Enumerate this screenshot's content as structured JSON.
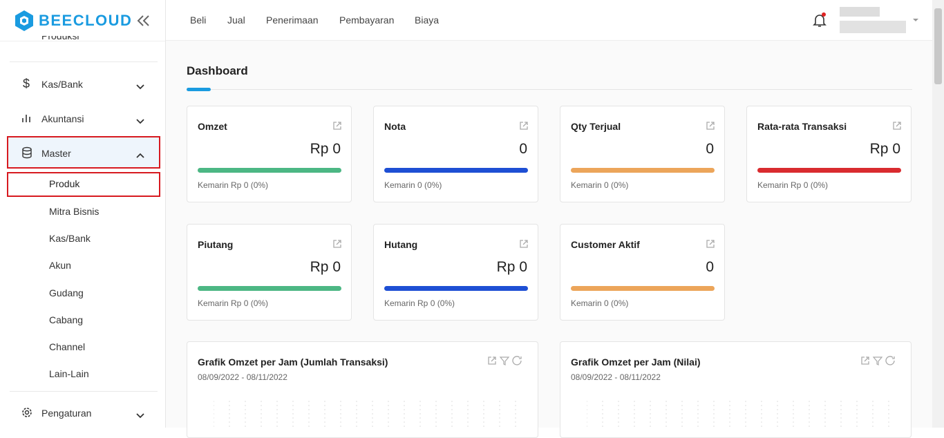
{
  "brand": "BEECLOUD",
  "sidebar": {
    "items_top": [
      "Produksi",
      "Kas/Bank",
      "Akuntansi"
    ],
    "master": "Master",
    "submenu": [
      "Produk",
      "Mitra Bisnis",
      "Kas/Bank",
      "Akun",
      "Gudang",
      "Cabang",
      "Channel",
      "Lain-Lain"
    ],
    "items_bottom": [
      "Pengaturan"
    ]
  },
  "topnav": [
    "Beli",
    "Jual",
    "Penerimaan",
    "Pembayaran",
    "Biaya"
  ],
  "page_title": "Dashboard",
  "cards": [
    {
      "title": "Omzet",
      "value": "Rp 0",
      "note": "Kemarin Rp 0 (0%)",
      "color": "#4cb784"
    },
    {
      "title": "Nota",
      "value": "0",
      "note": "Kemarin 0 (0%)",
      "color": "#1e4fd4"
    },
    {
      "title": "Qty Terjual",
      "value": "0",
      "note": "Kemarin 0 (0%)",
      "color": "#eca55a"
    },
    {
      "title": "Rata-rata Transaksi",
      "value": "Rp 0",
      "note": "Kemarin Rp 0 (0%)",
      "color": "#d92b2f"
    },
    {
      "title": "Piutang",
      "value": "Rp 0",
      "note": "Kemarin Rp 0 (0%)",
      "color": "#4cb784"
    },
    {
      "title": "Hutang",
      "value": "Rp 0",
      "note": "Kemarin Rp 0 (0%)",
      "color": "#1e4fd4"
    },
    {
      "title": "Customer Aktif",
      "value": "0",
      "note": "Kemarin 0 (0%)",
      "color": "#eca55a"
    }
  ],
  "charts": [
    {
      "title": "Grafik Omzet per Jam (Jumlah Transaksi)",
      "range": "08/09/2022 - 08/11/2022"
    },
    {
      "title": "Grafik Omzet per Jam (Nilai)",
      "range": "08/09/2022 - 08/11/2022"
    }
  ]
}
